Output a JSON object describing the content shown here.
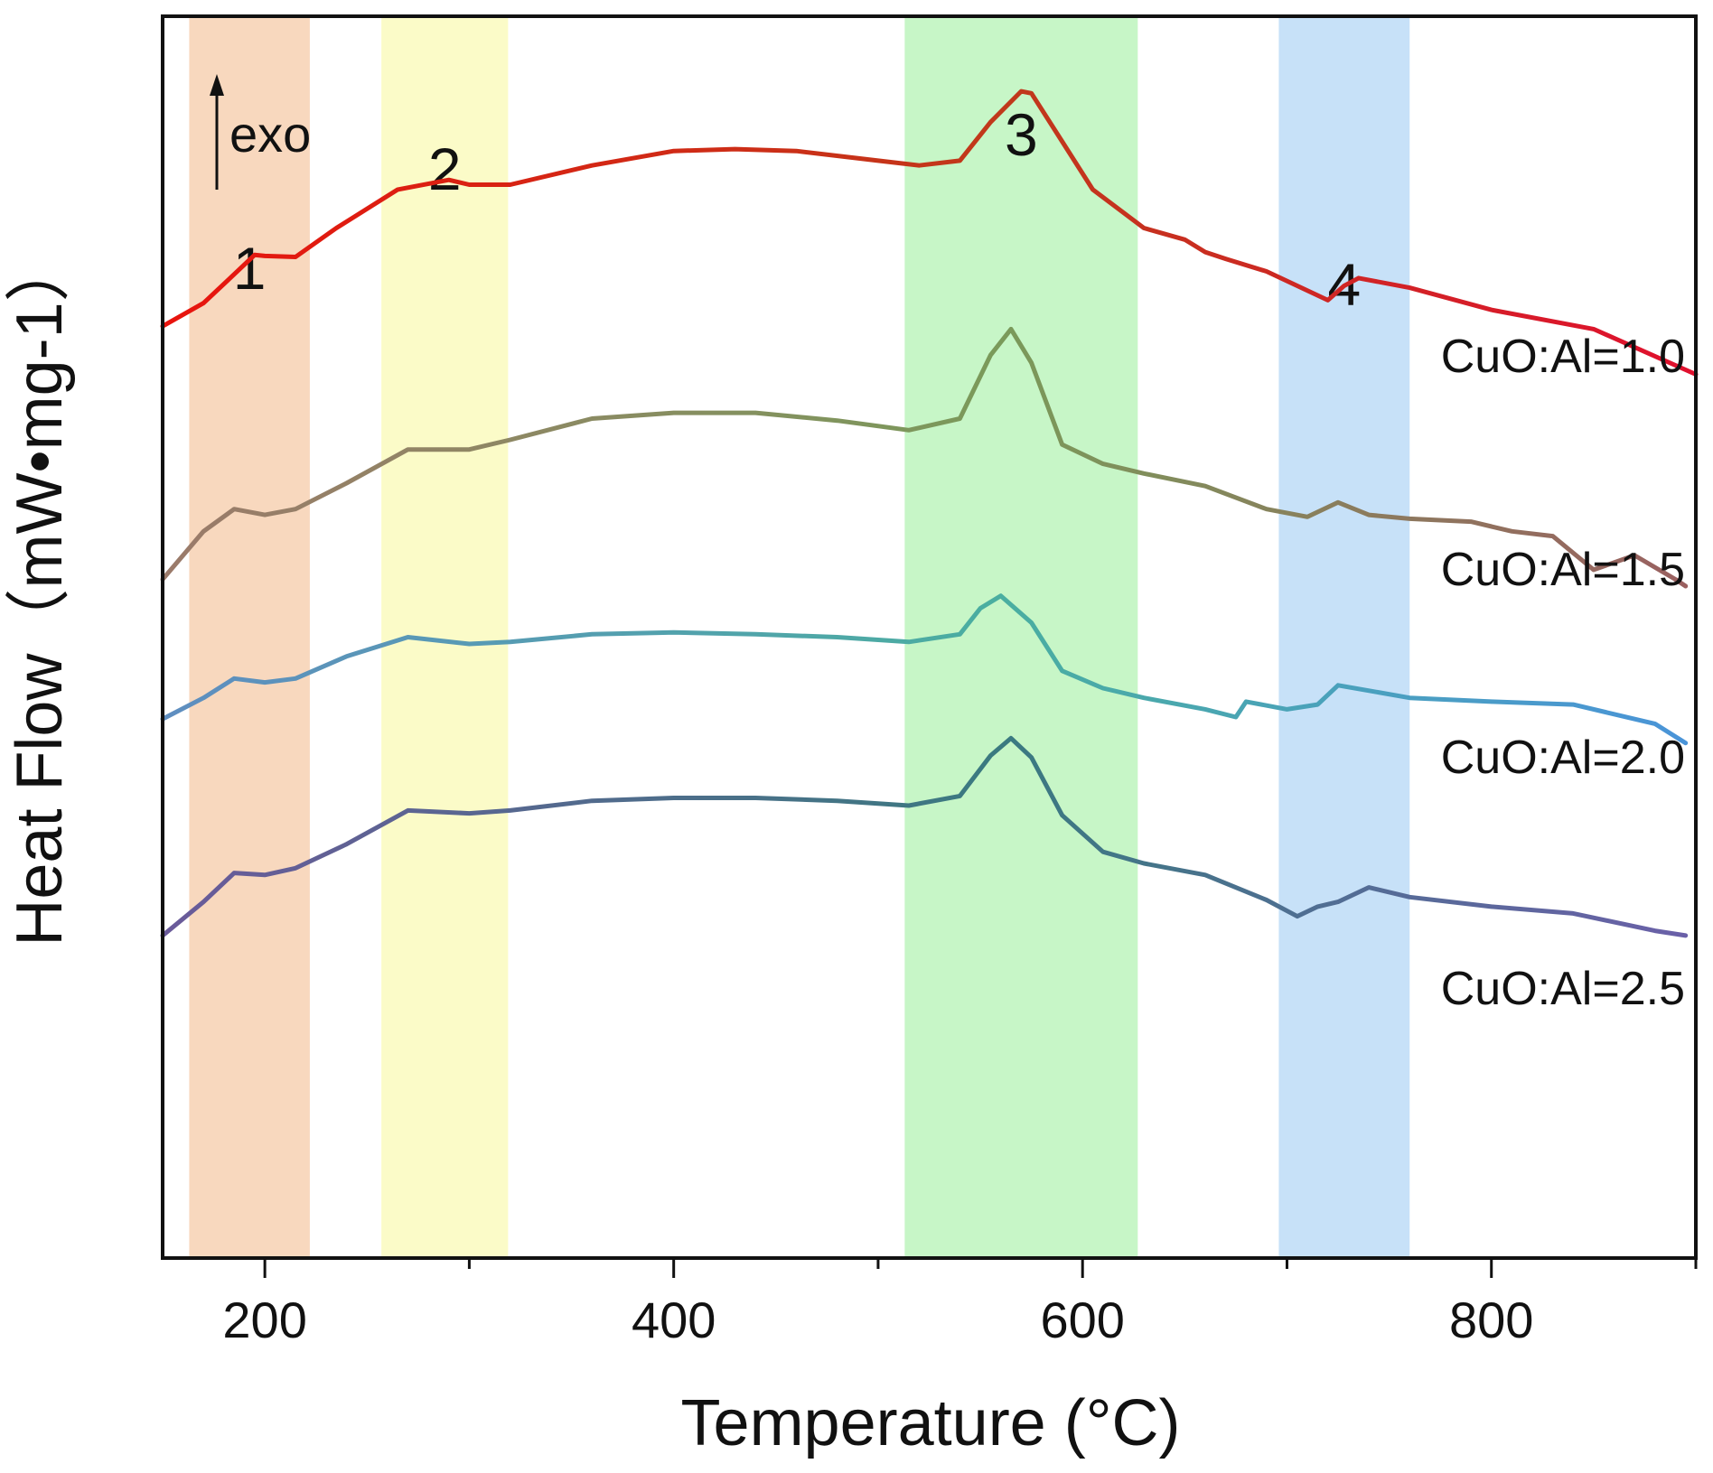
{
  "chart_data": {
    "type": "line",
    "title": "",
    "xlabel": "Temperature (°C)",
    "ylabel": "Heat Flow（mW•mg-1）",
    "xlim": [
      150,
      900
    ],
    "xticks": [
      200,
      400,
      600,
      800
    ],
    "y_ticks_shown": false,
    "annotation": "exo",
    "legend_placement": "labels at right end of each curve",
    "bands": [
      {
        "label": "1",
        "x_start": 163,
        "x_end": 222,
        "color": "#f8d8be"
      },
      {
        "label": "2",
        "x_start": 257,
        "x_end": 319,
        "color": "#fbfbc8"
      },
      {
        "label": "3",
        "x_start": 513,
        "x_end": 627,
        "color": "#c7f6c7"
      },
      {
        "label": "4",
        "x_start": 696,
        "x_end": 760,
        "color": "#c7e1f8"
      }
    ],
    "series": [
      {
        "name": "CuO:Al=1.0",
        "color_start": "#e8140e",
        "color_mid": "#c0391b",
        "color_end": "#e0102e",
        "x": [
          150,
          170,
          185,
          195,
          200,
          215,
          235,
          265,
          290,
          300,
          320,
          360,
          400,
          430,
          460,
          500,
          520,
          540,
          555,
          570,
          575,
          590,
          605,
          630,
          650,
          660,
          670,
          690,
          720,
          728,
          735,
          760,
          800,
          850,
          900
        ],
        "y": [
          1.08,
          1.32,
          1.62,
          1.82,
          1.81,
          1.8,
          2.1,
          2.5,
          2.6,
          2.55,
          2.55,
          2.75,
          2.9,
          2.92,
          2.9,
          2.8,
          2.75,
          2.8,
          3.2,
          3.52,
          3.5,
          3.0,
          2.5,
          2.1,
          1.98,
          1.85,
          1.78,
          1.65,
          1.35,
          1.5,
          1.58,
          1.48,
          1.25,
          1.05,
          0.58
        ]
      },
      {
        "name": "CuO:Al=1.5",
        "color_start": "#9b7a6a",
        "color_mid": "#7a9a5a",
        "color_end": "#9a6060",
        "x": [
          150,
          170,
          185,
          200,
          215,
          240,
          270,
          300,
          320,
          360,
          400,
          440,
          480,
          515,
          540,
          555,
          565,
          575,
          590,
          610,
          630,
          660,
          690,
          710,
          725,
          740,
          760,
          790,
          810,
          830,
          850,
          870,
          890,
          895
        ],
        "y": [
          -1.55,
          -1.05,
          -0.82,
          -0.88,
          -0.82,
          -0.55,
          -0.2,
          -0.2,
          -0.1,
          0.12,
          0.18,
          0.18,
          0.1,
          0.0,
          0.12,
          0.78,
          1.05,
          0.7,
          -0.15,
          -0.35,
          -0.45,
          -0.58,
          -0.82,
          -0.9,
          -0.75,
          -0.88,
          -0.92,
          -0.95,
          -1.05,
          -1.1,
          -1.45,
          -1.3,
          -1.55,
          -1.62
        ]
      },
      {
        "name": "CuO:Al=2.0",
        "color_start": "#5f8ec0",
        "color_mid": "#4aaea0",
        "color_end": "#4a94d8",
        "x": [
          150,
          170,
          185,
          200,
          215,
          240,
          270,
          300,
          320,
          360,
          400,
          440,
          480,
          515,
          540,
          550,
          560,
          575,
          590,
          610,
          630,
          660,
          675,
          680,
          700,
          715,
          725,
          760,
          800,
          840,
          880,
          895
        ],
        "y": [
          -3.0,
          -2.78,
          -2.58,
          -2.62,
          -2.58,
          -2.35,
          -2.15,
          -2.22,
          -2.2,
          -2.12,
          -2.1,
          -2.12,
          -2.15,
          -2.2,
          -2.12,
          -1.85,
          -1.72,
          -2.0,
          -2.5,
          -2.68,
          -2.78,
          -2.9,
          -2.98,
          -2.82,
          -2.9,
          -2.85,
          -2.65,
          -2.78,
          -2.82,
          -2.85,
          -3.05,
          -3.25
        ]
      },
      {
        "name": "CuO:Al=2.5",
        "color_start": "#6a5a9a",
        "color_mid": "#3a7a80",
        "color_end": "#6a60a8",
        "x": [
          150,
          170,
          185,
          200,
          215,
          240,
          270,
          300,
          320,
          360,
          400,
          440,
          480,
          515,
          540,
          555,
          565,
          575,
          590,
          610,
          630,
          660,
          690,
          705,
          715,
          725,
          740,
          760,
          800,
          840,
          880,
          895
        ],
        "y": [
          -5.25,
          -4.9,
          -4.6,
          -4.62,
          -4.55,
          -4.3,
          -3.95,
          -3.98,
          -3.95,
          -3.85,
          -3.82,
          -3.82,
          -3.85,
          -3.9,
          -3.8,
          -3.38,
          -3.2,
          -3.4,
          -4.0,
          -4.38,
          -4.5,
          -4.62,
          -4.88,
          -5.05,
          -4.95,
          -4.9,
          -4.75,
          -4.85,
          -4.95,
          -5.02,
          -5.2,
          -5.25
        ]
      }
    ]
  }
}
